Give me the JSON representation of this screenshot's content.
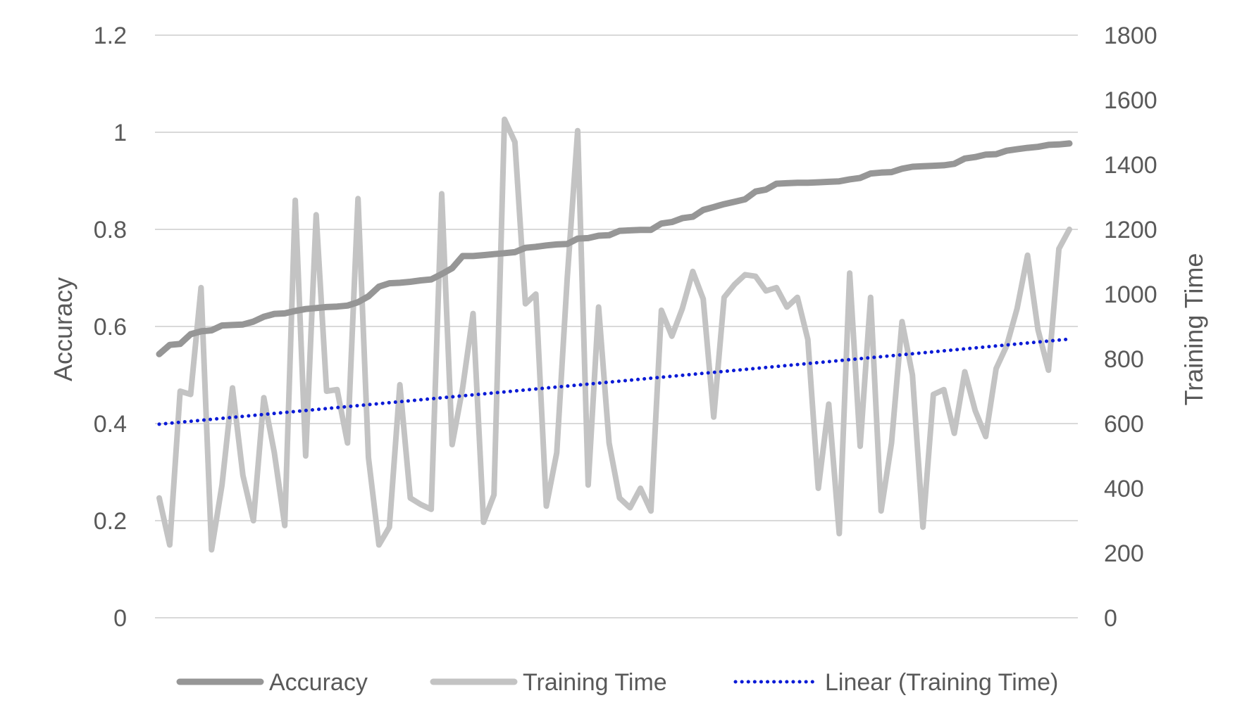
{
  "chart_data": {
    "type": "line",
    "title": "",
    "xlabel": "",
    "y_left": {
      "label": "Accuracy",
      "lim": [
        0,
        1.2
      ],
      "ticks": [
        "0",
        "0.2",
        "0.4",
        "0.6",
        "0.8",
        "1",
        "1.2"
      ]
    },
    "y_right": {
      "label": "Training Time",
      "lim": [
        0,
        1800
      ],
      "ticks": [
        "0",
        "200",
        "400",
        "600",
        "800",
        "1000",
        "1200",
        "1400",
        "1600",
        "1800"
      ]
    },
    "grid": true,
    "legend_position": "bottom",
    "point_count": 88,
    "series": [
      {
        "name": "Accuracy",
        "axis": "left",
        "color": "#969696",
        "values": [
          0.543,
          0.562,
          0.564,
          0.584,
          0.59,
          0.592,
          0.602,
          0.603,
          0.604,
          0.61,
          0.62,
          0.626,
          0.627,
          0.632,
          0.636,
          0.638,
          0.64,
          0.641,
          0.643,
          0.65,
          0.662,
          0.682,
          0.689,
          0.69,
          0.692,
          0.695,
          0.697,
          0.708,
          0.72,
          0.745,
          0.745,
          0.747,
          0.749,
          0.751,
          0.753,
          0.762,
          0.764,
          0.767,
          0.769,
          0.77,
          0.781,
          0.782,
          0.787,
          0.788,
          0.797,
          0.798,
          0.799,
          0.799,
          0.812,
          0.815,
          0.823,
          0.826,
          0.84,
          0.846,
          0.852,
          0.857,
          0.862,
          0.878,
          0.882,
          0.894,
          0.895,
          0.896,
          0.896,
          0.897,
          0.898,
          0.899,
          0.903,
          0.906,
          0.915,
          0.917,
          0.918,
          0.925,
          0.929,
          0.93,
          0.931,
          0.932,
          0.935,
          0.946,
          0.949,
          0.954,
          0.955,
          0.962,
          0.965,
          0.968,
          0.97,
          0.974,
          0.975,
          0.977
        ]
      },
      {
        "name": "Training Time",
        "axis": "right",
        "color": "#c3c3c3",
        "values": [
          370,
          225,
          700,
          690,
          1020,
          210,
          410,
          710,
          440,
          300,
          680,
          510,
          285,
          1290,
          500,
          1245,
          700,
          705,
          540,
          1295,
          495,
          225,
          280,
          720,
          370,
          350,
          335,
          1310,
          535,
          710,
          940,
          295,
          380,
          1540,
          1470,
          970,
          1000,
          345,
          510,
          1050,
          1505,
          410,
          960,
          540,
          370,
          340,
          400,
          330,
          950,
          870,
          955,
          1070,
          985,
          620,
          990,
          1030,
          1060,
          1055,
          1010,
          1020,
          960,
          990,
          860,
          400,
          660,
          260,
          1065,
          530,
          990,
          330,
          540,
          915,
          750,
          280,
          690,
          705,
          570,
          760,
          640,
          560,
          770,
          840,
          955,
          1120,
          890,
          765,
          1140,
          1200
        ]
      },
      {
        "name": "Linear (Training Time)",
        "axis": "right",
        "color": "#0b1bd6",
        "trendline": true,
        "values": [
          598,
          861
        ]
      }
    ]
  }
}
